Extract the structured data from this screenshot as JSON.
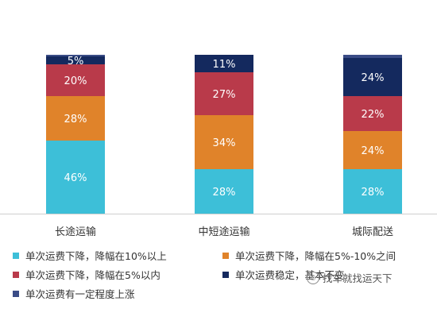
{
  "chart_data": {
    "type": "bar",
    "stacked": true,
    "categories": [
      "长途运输",
      "中短途运输",
      "城际配送"
    ],
    "series": [
      {
        "name": "单次运费下降，降幅在10%以上",
        "color": "#3dbfd8",
        "values": [
          46,
          28,
          28
        ]
      },
      {
        "name": "单次运费下降，降幅在5%-10%之间",
        "color": "#e0832a",
        "values": [
          28,
          34,
          24
        ]
      },
      {
        "name": "单次运费下降，降幅在5%以内",
        "color": "#b93a4a",
        "values": [
          20,
          27,
          22
        ]
      },
      {
        "name": "单次运费稳定，基本不变",
        "color": "#14295e",
        "values": [
          5,
          11,
          24
        ]
      },
      {
        "name": "单次运费有一定程度上涨",
        "color": "#3a4c86",
        "values": [
          1,
          0,
          2
        ]
      }
    ],
    "data_labels": [
      [
        "46%",
        "28%",
        "20%",
        "5%",
        ""
      ],
      [
        "28%",
        "34%",
        "27%",
        "11%",
        ""
      ],
      [
        "28%",
        "24%",
        "22%",
        "24%",
        ""
      ]
    ],
    "ylim": [
      0,
      100
    ],
    "legend_position": "bottom"
  },
  "watermark": {
    "text": "找车就找运天下"
  }
}
